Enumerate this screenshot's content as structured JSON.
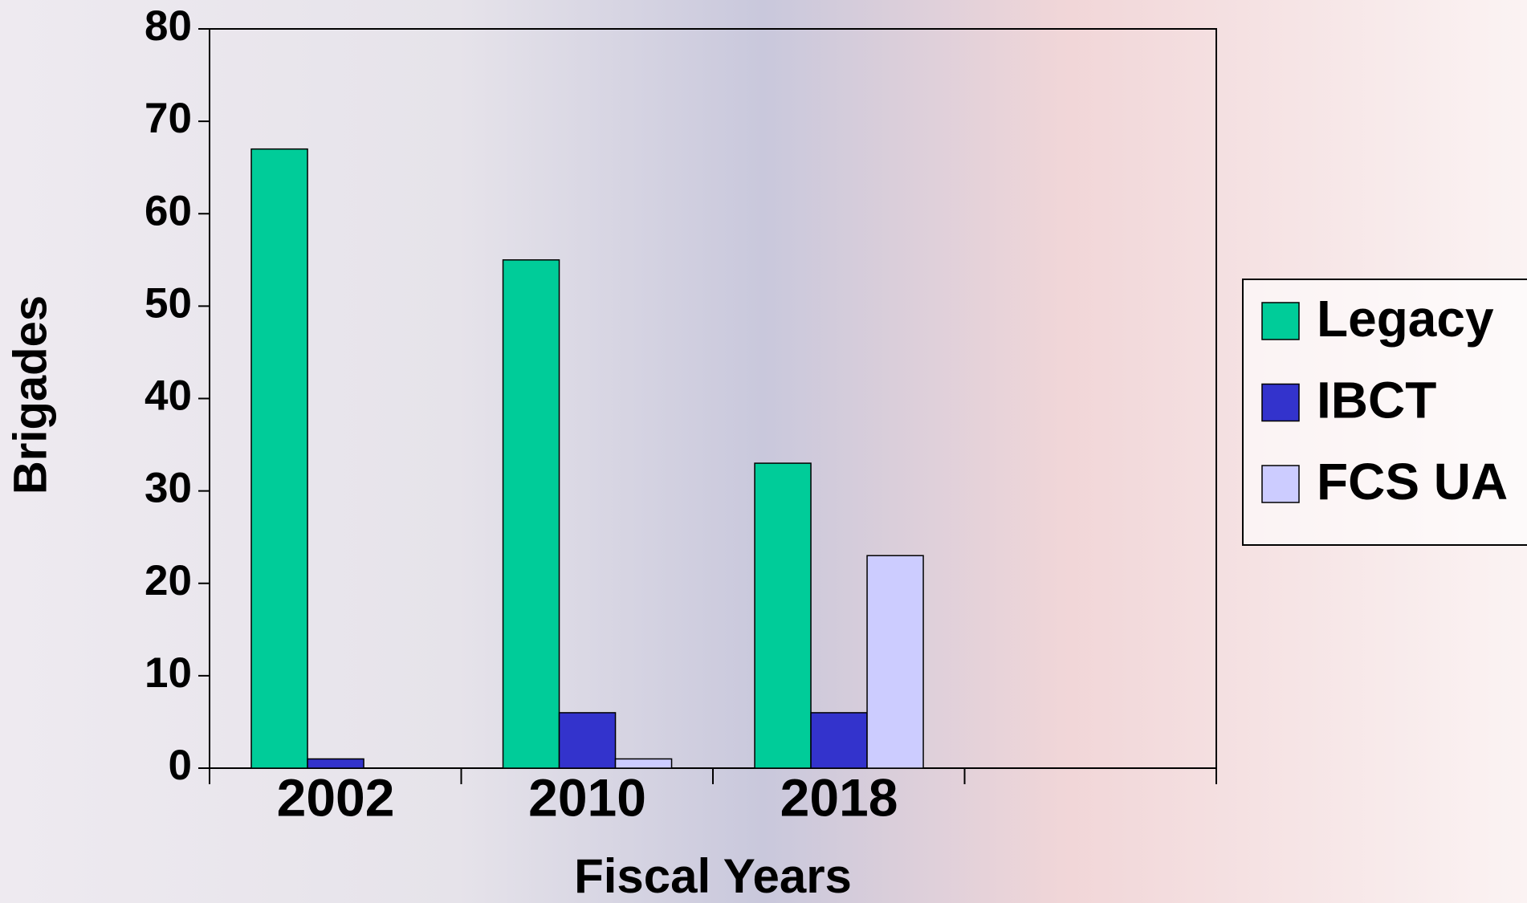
{
  "chart_data": {
    "type": "bar",
    "x_label": "Fiscal Years",
    "y_label": "Brigades",
    "categories": [
      "2002",
      "2010",
      "2018",
      null
    ],
    "series": [
      {
        "name": "Legacy",
        "color": "#00cc99",
        "values": [
          67,
          55,
          33,
          null
        ]
      },
      {
        "name": "IBCT",
        "color": "#3333cc",
        "values": [
          1,
          6,
          6,
          null
        ]
      },
      {
        "name": "FCS UA",
        "color": "#ccccff",
        "values": [
          0,
          1,
          23,
          null
        ]
      }
    ],
    "ylim": [
      0,
      80
    ],
    "yticks": [
      0,
      10,
      20,
      30,
      40,
      50,
      60,
      70,
      80
    ],
    "grid": false,
    "legend": "right"
  }
}
